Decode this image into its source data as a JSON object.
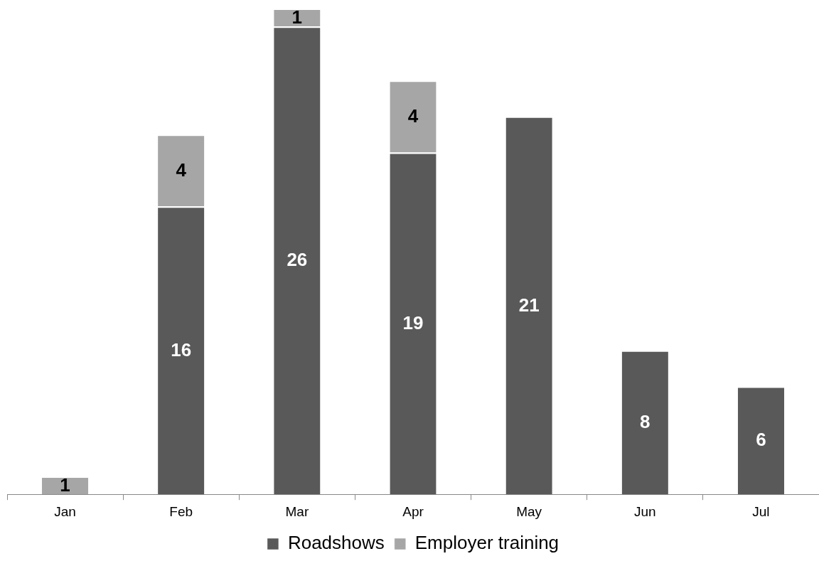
{
  "chart_data": {
    "type": "bar",
    "stacked": true,
    "data_labels": true,
    "legend": "bottom",
    "grid": false,
    "categories": [
      "Jan",
      "Feb",
      "Mar",
      "Apr",
      "May",
      "Jun",
      "Jul"
    ],
    "series": [
      {
        "name": "Roadshows",
        "color": "#595959",
        "values": [
          null,
          16,
          26,
          19,
          21,
          8,
          6
        ]
      },
      {
        "name": "Employer training",
        "color": "#a6a6a6",
        "values": [
          1,
          4,
          1,
          4,
          null,
          null,
          null
        ]
      }
    ],
    "tick_labels": "x"
  }
}
